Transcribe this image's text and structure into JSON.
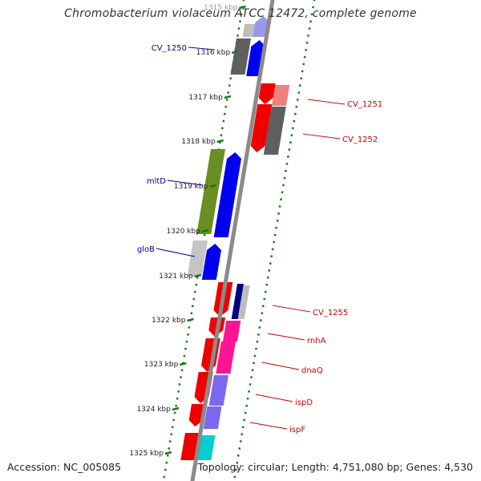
{
  "title": "Chromobacterium violaceum ATCC 12472, complete genome",
  "accession_label": "Accession: NC_005085",
  "topology_label": "Topology: circular; Length: 4,751,080 bp; Genes: 4,530",
  "colors": {
    "backbone": "#8a8a8a",
    "ruler": "#1a7a1a",
    "label_blue": "#00008b",
    "label_red": "#cc0000",
    "forward_gene": "#0000ee",
    "reverse_gene": "#ee0000"
  },
  "ticks": [
    {
      "label": "1315 kbp"
    },
    {
      "label": "1316 kbp"
    },
    {
      "label": "1317 kbp"
    },
    {
      "label": "1318 kbp"
    },
    {
      "label": "1319 kbp"
    },
    {
      "label": "1320 kbp"
    },
    {
      "label": "1321 kbp"
    },
    {
      "label": "1322 kbp"
    },
    {
      "label": "1323 kbp"
    },
    {
      "label": "1324 kbp"
    },
    {
      "label": "1325 kbp"
    }
  ],
  "gene_labels": [
    {
      "name": "CV_1250",
      "side": "left"
    },
    {
      "name": "mltD",
      "side": "left"
    },
    {
      "name": "gloB",
      "side": "left"
    },
    {
      "name": "CV_1251",
      "side": "right"
    },
    {
      "name": "CV_1252",
      "side": "right"
    },
    {
      "name": "CV_1255",
      "side": "right"
    },
    {
      "name": "rnhA",
      "side": "right"
    },
    {
      "name": "dnaQ",
      "side": "right"
    },
    {
      "name": "ispD",
      "side": "right"
    },
    {
      "name": "ispF",
      "side": "right"
    }
  ]
}
